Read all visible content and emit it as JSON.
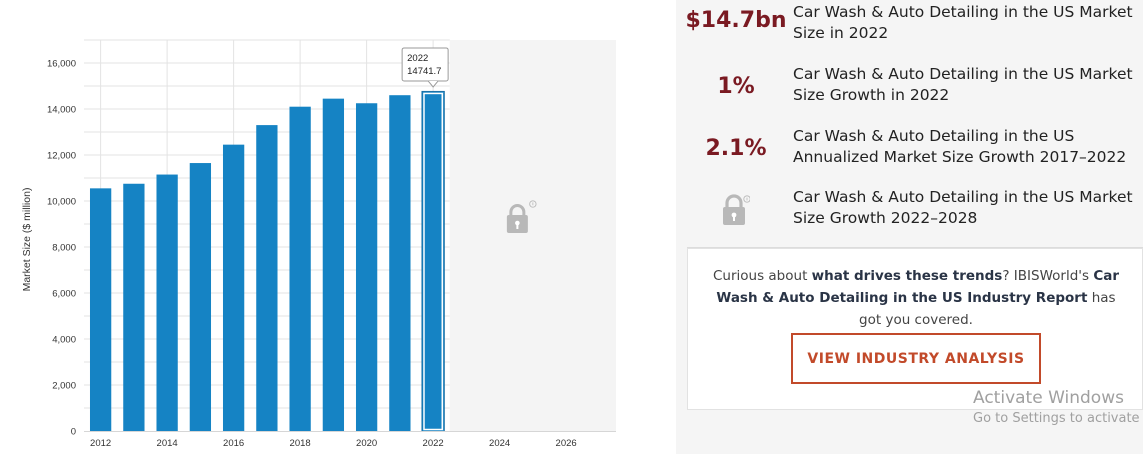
{
  "chart_data": {
    "type": "bar",
    "ylabel": "Market Size ($ million)",
    "xlabel": "",
    "ylim": [
      0,
      17000
    ],
    "xlim": [
      2011.5,
      2027.5
    ],
    "y_ticks": [
      0,
      2000,
      4000,
      6000,
      8000,
      10000,
      12000,
      14000,
      16000
    ],
    "y_tick_labels": [
      "0",
      "2,000",
      "4,000",
      "6,000",
      "8,000",
      "10,000",
      "12,000",
      "14,000",
      "16,000"
    ],
    "x_ticks": [
      "2012",
      "2014",
      "2016",
      "2018",
      "2020",
      "2022",
      "2024",
      "2026"
    ],
    "categories": [
      "2012",
      "2013",
      "2014",
      "2015",
      "2016",
      "2017",
      "2018",
      "2019",
      "2020",
      "2021",
      "2022"
    ],
    "values": [
      10550,
      10750,
      11150,
      11650,
      12450,
      13300,
      14100,
      14450,
      14250,
      14600,
      14741.7
    ],
    "bar_color": "#1583c4",
    "highlighted_category": "2022",
    "locked_range": [
      "2023",
      "2027"
    ],
    "tooltip": {
      "year": "2022",
      "value": "14741.7"
    },
    "grid": true
  },
  "stats": [
    {
      "value": "$14.7bn",
      "label": "Car Wash & Auto Detailing in the US Market Size in 2022"
    },
    {
      "value": "1%",
      "label": "Car Wash & Auto Detailing in the US Market Size Growth in 2022"
    },
    {
      "value": "2.1%",
      "label": "Car Wash & Auto Detailing in the US Annualized Market Size Growth 2017–2022"
    },
    {
      "value": "",
      "icon": "lock-icon",
      "label": "Car Wash & Auto Detailing in the US Market Size Growth 2022–2028"
    }
  ],
  "promo": {
    "part1": "Curious about ",
    "bold1": "what drives these trends",
    "part2": "? IBISWorld's ",
    "bold2": "Car Wash & Auto Detailing in the US Industry Report",
    "part3": " has got you covered.",
    "button_label": "VIEW INDUSTRY ANALYSIS"
  },
  "watermark": {
    "line1": "Activate Windows",
    "line2": "Go to Settings to activate"
  },
  "colors": {
    "accent": "#7a1a22",
    "cta": "#c24a2a",
    "bar": "#1583c4"
  }
}
